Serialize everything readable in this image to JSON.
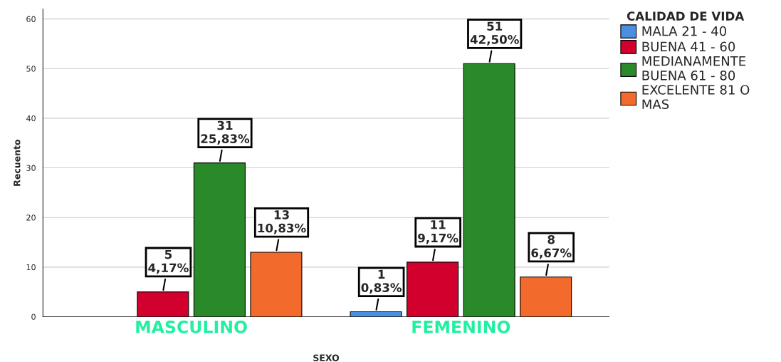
{
  "chart_data": {
    "type": "bar",
    "xlabel": "SEXO",
    "ylabel": "Recuento",
    "legend_title": "CALIDAD DE VIDA",
    "legend": "top right",
    "grid": "y",
    "categories": [
      "MASCULINO",
      "FEMENINO"
    ],
    "ylim": [
      0,
      62
    ],
    "yticks": [
      0,
      10,
      20,
      30,
      40,
      50,
      60
    ],
    "series": [
      {
        "name": "MALA 21 - 40",
        "color": "#4a8fe0",
        "values": [
          null,
          1
        ],
        "value_labels": [
          null,
          "1\n0,83%"
        ]
      },
      {
        "name": "BUENA 41 - 60",
        "color": "#d2002c",
        "values": [
          5,
          11
        ],
        "value_labels": [
          "5\n4,17%",
          "11\n9,17%"
        ]
      },
      {
        "name": "MEDIANAMENTE\nBUENA 61 - 80",
        "color": "#2a8a2a",
        "values": [
          31,
          51
        ],
        "value_labels": [
          "31\n25,83%",
          "51\n42,50%"
        ]
      },
      {
        "name": "EXCELENTE 81 O\nMAS",
        "color": "#f26a2c",
        "values": [
          13,
          8
        ],
        "value_labels": [
          "13\n10,83%",
          "8\n6,67%"
        ]
      }
    ]
  }
}
